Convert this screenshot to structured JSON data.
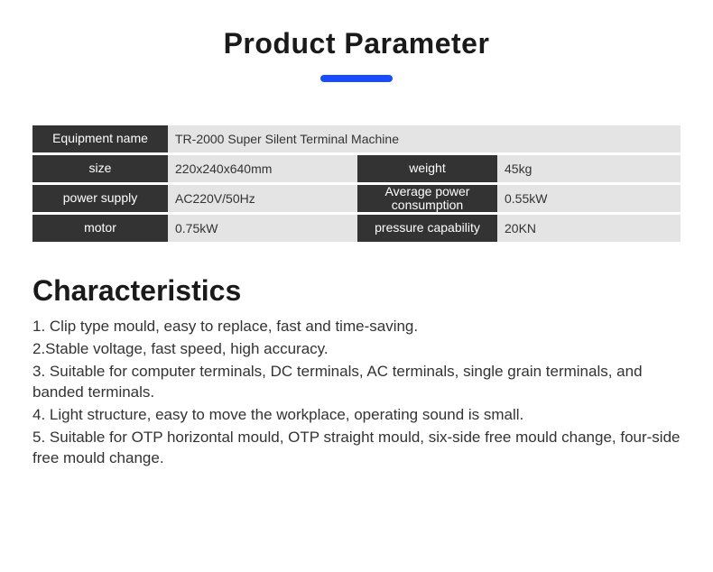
{
  "title": "Product Parameter",
  "underline_color": "#1a4cff",
  "params": {
    "row1": {
      "label": "Equipment name",
      "value": "TR-2000   Super Silent Terminal Machine"
    },
    "row2": {
      "label1": "size",
      "value1": "220x240x640mm",
      "label2": "weight",
      "value2": "45kg"
    },
    "row3": {
      "label1": "power supply",
      "value1": "AC220V/50Hz",
      "label2": "Average power consumption",
      "value2": "0.55kW"
    },
    "row4": {
      "label1": "motor",
      "value1": "0.75kW",
      "label2": "pressure capability",
      "value2": "20KN"
    }
  },
  "characteristics": {
    "heading": "Characteristics",
    "items": [
      "1. Clip type mould, easy to replace, fast and time-saving.",
      "2.Stable voltage, fast speed, high accuracy.",
      "3. Suitable for computer terminals, DC terminals, AC terminals, single grain terminals, and banded terminals.",
      "4. Light structure, easy to move the workplace, operating sound is small.",
      "5. Suitable for OTP horizontal mould, OTP straight mould, six-side free mould change, four-side free mould change."
    ]
  }
}
